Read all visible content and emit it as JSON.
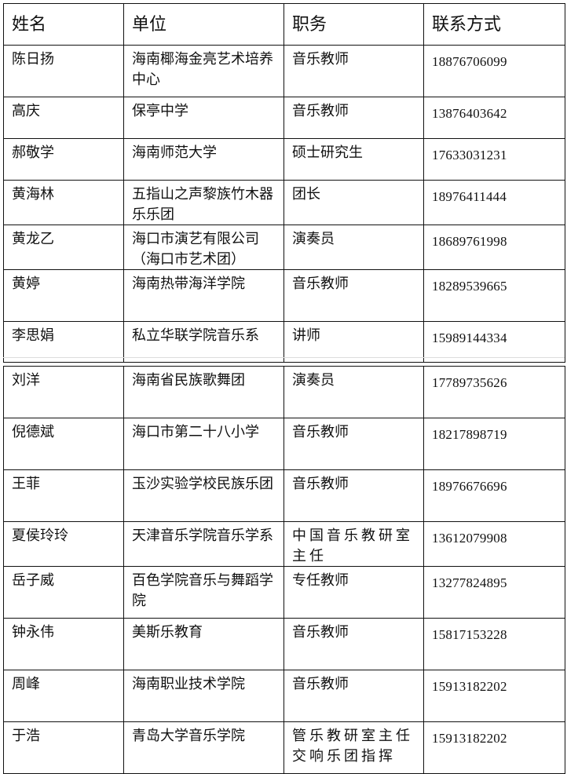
{
  "headers": [
    "姓名",
    "单位",
    "职务",
    "联系方式"
  ],
  "rows": [
    {
      "name": "陈日扬",
      "unit": "海南椰海金亮艺术培养中心",
      "position": "音乐教师",
      "phone": "18876706099"
    },
    {
      "name": "高庆",
      "unit": "保亭中学",
      "position": "音乐教师",
      "phone": "13876403642"
    },
    {
      "name": "郝敬学",
      "unit": "海南师范大学",
      "position": "硕士研究生",
      "phone": "17633031231"
    },
    {
      "name": "黄海林",
      "unit": "五指山之声黎族竹木器乐乐团",
      "position": "团长",
      "phone": "18976411444"
    },
    {
      "name": "黄龙乙",
      "unit": "海口市演艺有限公司（海口市艺术团）",
      "position": "演奏员",
      "phone": "18689761998"
    },
    {
      "name": "黄婷",
      "unit": "海南热带海洋学院",
      "position": "音乐教师",
      "phone": "18289539665"
    },
    {
      "name": "李思娟",
      "unit": "私立华联学院音乐系",
      "position": "讲师",
      "phone": "15989144334"
    },
    {
      "name": "刘洋",
      "unit": "海南省民族歌舞团",
      "position": "演奏员",
      "phone": "17789735626"
    },
    {
      "name": "倪德斌",
      "unit": "海口市第二十八小学",
      "position": "音乐教师",
      "phone": "18217898719"
    },
    {
      "name": "王菲",
      "unit": "玉沙实验学校民族乐团",
      "position": "音乐教师",
      "phone": "18976676696"
    },
    {
      "name": "夏侯玲玲",
      "unit": "天津音乐学院音乐学系",
      "position": "中国音乐教研室主任",
      "phone": "13612079908"
    },
    {
      "name": "岳子威",
      "unit": "百色学院音乐与舞蹈学院",
      "position": "专任教师",
      "phone": "13277824895"
    },
    {
      "name": "钟永伟",
      "unit": "美斯乐教育",
      "position": "音乐教师",
      "phone": "15817153228"
    },
    {
      "name": "周峰",
      "unit": "海南职业技术学院",
      "position": "音乐教师",
      "phone": "15913182202"
    },
    {
      "name": "于浩",
      "unit": "青岛大学音乐学院",
      "position": "管乐教研室主任交响乐团指挥",
      "phone": "15913182202"
    }
  ]
}
